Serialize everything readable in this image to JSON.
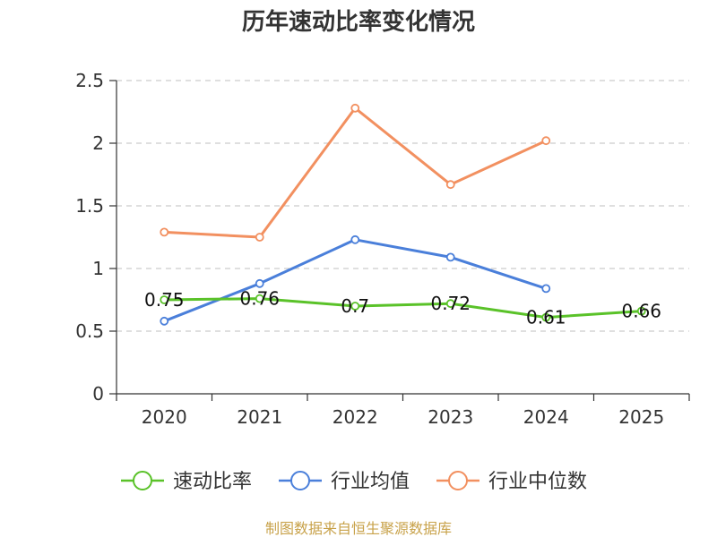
{
  "chart_data": {
    "type": "line",
    "title": "历年速动比率变化情况",
    "categories": [
      "2020",
      "2021",
      "2022",
      "2023",
      "2024",
      "2025"
    ],
    "ylim": [
      0,
      2.5
    ],
    "yticks": [
      "0",
      "0.5",
      "1",
      "1.5",
      "2",
      "2.5"
    ],
    "grid": true,
    "legend_position": "bottom",
    "series": [
      {
        "name": "速动比率",
        "color": "#5ac229",
        "values": [
          0.75,
          0.76,
          0.7,
          0.72,
          0.61,
          0.66
        ],
        "labels": [
          "0.75",
          "0.76",
          "0.7",
          "0.72",
          "0.61",
          "0.66"
        ]
      },
      {
        "name": "行业均值",
        "color": "#4a7fda",
        "values": [
          0.58,
          0.88,
          1.23,
          1.09,
          0.84,
          null
        ]
      },
      {
        "name": "行业中位数",
        "color": "#f29060",
        "values": [
          1.29,
          1.25,
          2.28,
          1.67,
          2.02,
          null
        ]
      }
    ]
  },
  "footer": {
    "source": "制图数据来自恒生聚源数据库"
  }
}
